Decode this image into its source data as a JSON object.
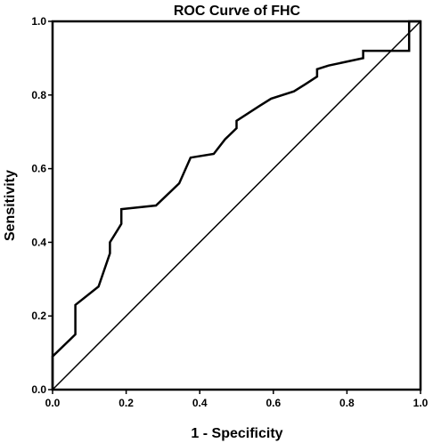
{
  "chart_data": {
    "type": "line",
    "title": "ROC Curve of FHC",
    "xlabel": "1 - Specificity",
    "ylabel": "Sensitivity",
    "xlim": [
      0.0,
      1.0
    ],
    "ylim": [
      0.0,
      1.0
    ],
    "xticks": [
      "0.0",
      "0.2",
      "0.4",
      "0.6",
      "0.8",
      "1.0"
    ],
    "yticks": [
      "0.0",
      "0.2",
      "0.4",
      "0.6",
      "0.8",
      "1.0"
    ],
    "grid": false,
    "legend": "none",
    "series": [
      {
        "role": "roc",
        "x": [
          0.0,
          0.0,
          0.062,
          0.062,
          0.125,
          0.156,
          0.156,
          0.187,
          0.187,
          0.281,
          0.344,
          0.375,
          0.438,
          0.469,
          0.5,
          0.5,
          0.562,
          0.594,
          0.656,
          0.688,
          0.719,
          0.719,
          0.75,
          0.844,
          0.844,
          0.969,
          0.969,
          1.0
        ],
        "y": [
          0.0,
          0.09,
          0.15,
          0.23,
          0.28,
          0.37,
          0.4,
          0.45,
          0.49,
          0.5,
          0.56,
          0.63,
          0.64,
          0.68,
          0.71,
          0.73,
          0.77,
          0.79,
          0.81,
          0.83,
          0.85,
          0.87,
          0.88,
          0.9,
          0.92,
          0.92,
          1.0,
          1.0
        ]
      },
      {
        "role": "reference",
        "x": [
          0.0,
          1.0
        ],
        "y": [
          0.0,
          1.0
        ]
      }
    ]
  }
}
